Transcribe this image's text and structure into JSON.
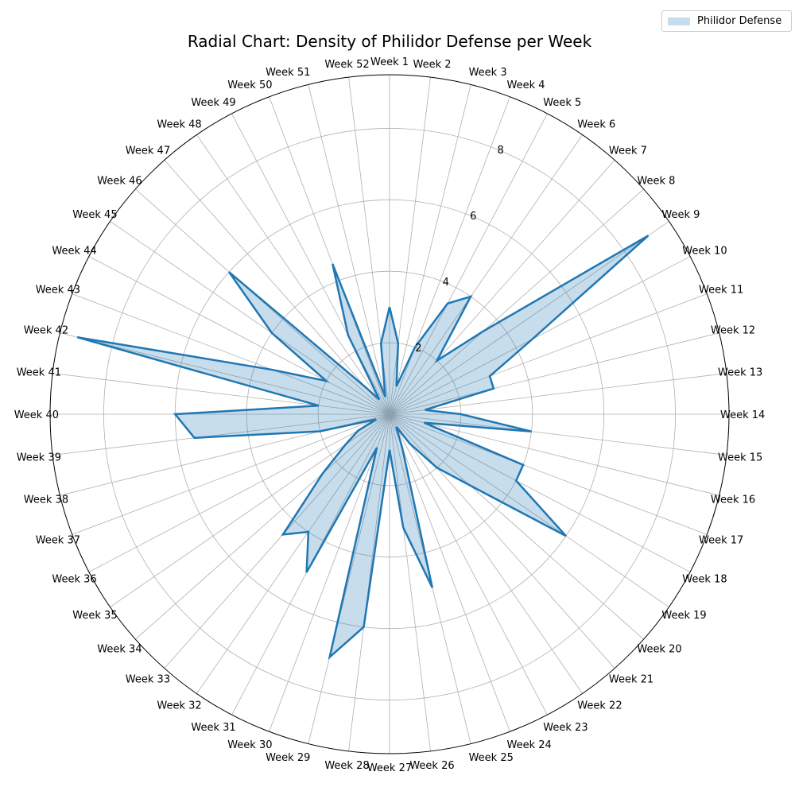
{
  "chart_data": {
    "type": "radar",
    "title": "Radial Chart: Density of Philidor Defense per Week",
    "categories": [
      "Week 1",
      "Week 2",
      "Week 3",
      "Week 4",
      "Week 5",
      "Week 6",
      "Week 7",
      "Week 8",
      "Week 9",
      "Week 10",
      "Week 11",
      "Week 12",
      "Week 13",
      "Week 14",
      "Week 15",
      "Week 16",
      "Week 17",
      "Week 18",
      "Week 19",
      "Week 20",
      "Week 21",
      "Week 22",
      "Week 23",
      "Week 24",
      "Week 25",
      "Week 26",
      "Week 27",
      "Week 28",
      "Week 29",
      "Week 30",
      "Week 31",
      "Week 32",
      "Week 33",
      "Week 34",
      "Week 35",
      "Week 36",
      "Week 37",
      "Week 38",
      "Week 39",
      "Week 40",
      "Week 41",
      "Week 42",
      "Week 43",
      "Week 44",
      "Week 45",
      "Week 46",
      "Week 47",
      "Week 48",
      "Week 49",
      "Week 50",
      "Week 51",
      "Week 52"
    ],
    "series": [
      {
        "name": "Philidor Defense",
        "values": [
          3.0,
          2.0,
          0.8,
          2.0,
          3.5,
          4.0,
          2.0,
          3.5,
          8.8,
          4.5,
          3.0,
          3.0,
          1.0,
          2.0,
          4.0,
          1.0,
          4.0,
          4.0,
          6.0,
          3.0,
          2.0,
          1.0,
          0.4,
          1.0,
          5.0,
          3.2,
          1.0,
          6.0,
          7.0,
          1.0,
          5.0,
          4.0,
          4.5,
          2.5,
          1.5,
          1.0,
          0.4,
          2.0,
          5.5,
          6.0,
          2.0,
          9.0,
          3.5,
          2.0,
          4.0,
          6.0,
          1.0,
          0.5,
          2.5,
          4.5,
          0.5,
          2.0
        ],
        "color": "#1f77b4"
      }
    ],
    "r_ticks": [
      2,
      4,
      6,
      8
    ],
    "r_max": 9.5,
    "grid": true,
    "legend_position": "top-right"
  },
  "legend": {
    "label": "Philidor Defense"
  }
}
